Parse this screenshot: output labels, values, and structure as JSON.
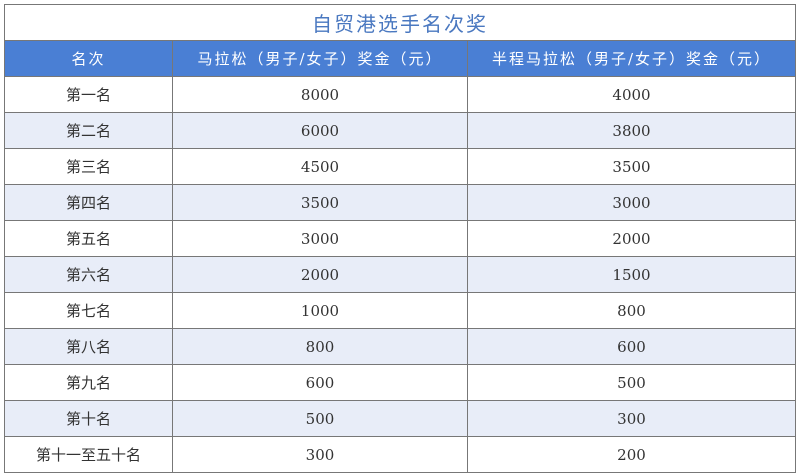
{
  "title": "自贸港选手名次奖",
  "headers": [
    "名次",
    "马拉松（男子/女子）奖金（元）",
    "半程马拉松（男子/女子）奖金（元）"
  ],
  "rows": [
    [
      "第一名",
      "8000",
      "4000"
    ],
    [
      "第二名",
      "6000",
      "3800"
    ],
    [
      "第三名",
      "4500",
      "3500"
    ],
    [
      "第四名",
      "3500",
      "3000"
    ],
    [
      "第五名",
      "3000",
      "2000"
    ],
    [
      "第六名",
      "2000",
      "1500"
    ],
    [
      "第七名",
      "1000",
      "800"
    ],
    [
      "第八名",
      "800",
      "600"
    ],
    [
      "第九名",
      "600",
      "500"
    ],
    [
      "第十名",
      "500",
      "300"
    ],
    [
      "第十一至五十名",
      "300",
      "200"
    ]
  ],
  "colors": {
    "header_bg": "#4a7fd4",
    "title": "#4a78c0",
    "alt_row": "#e8edf8"
  }
}
